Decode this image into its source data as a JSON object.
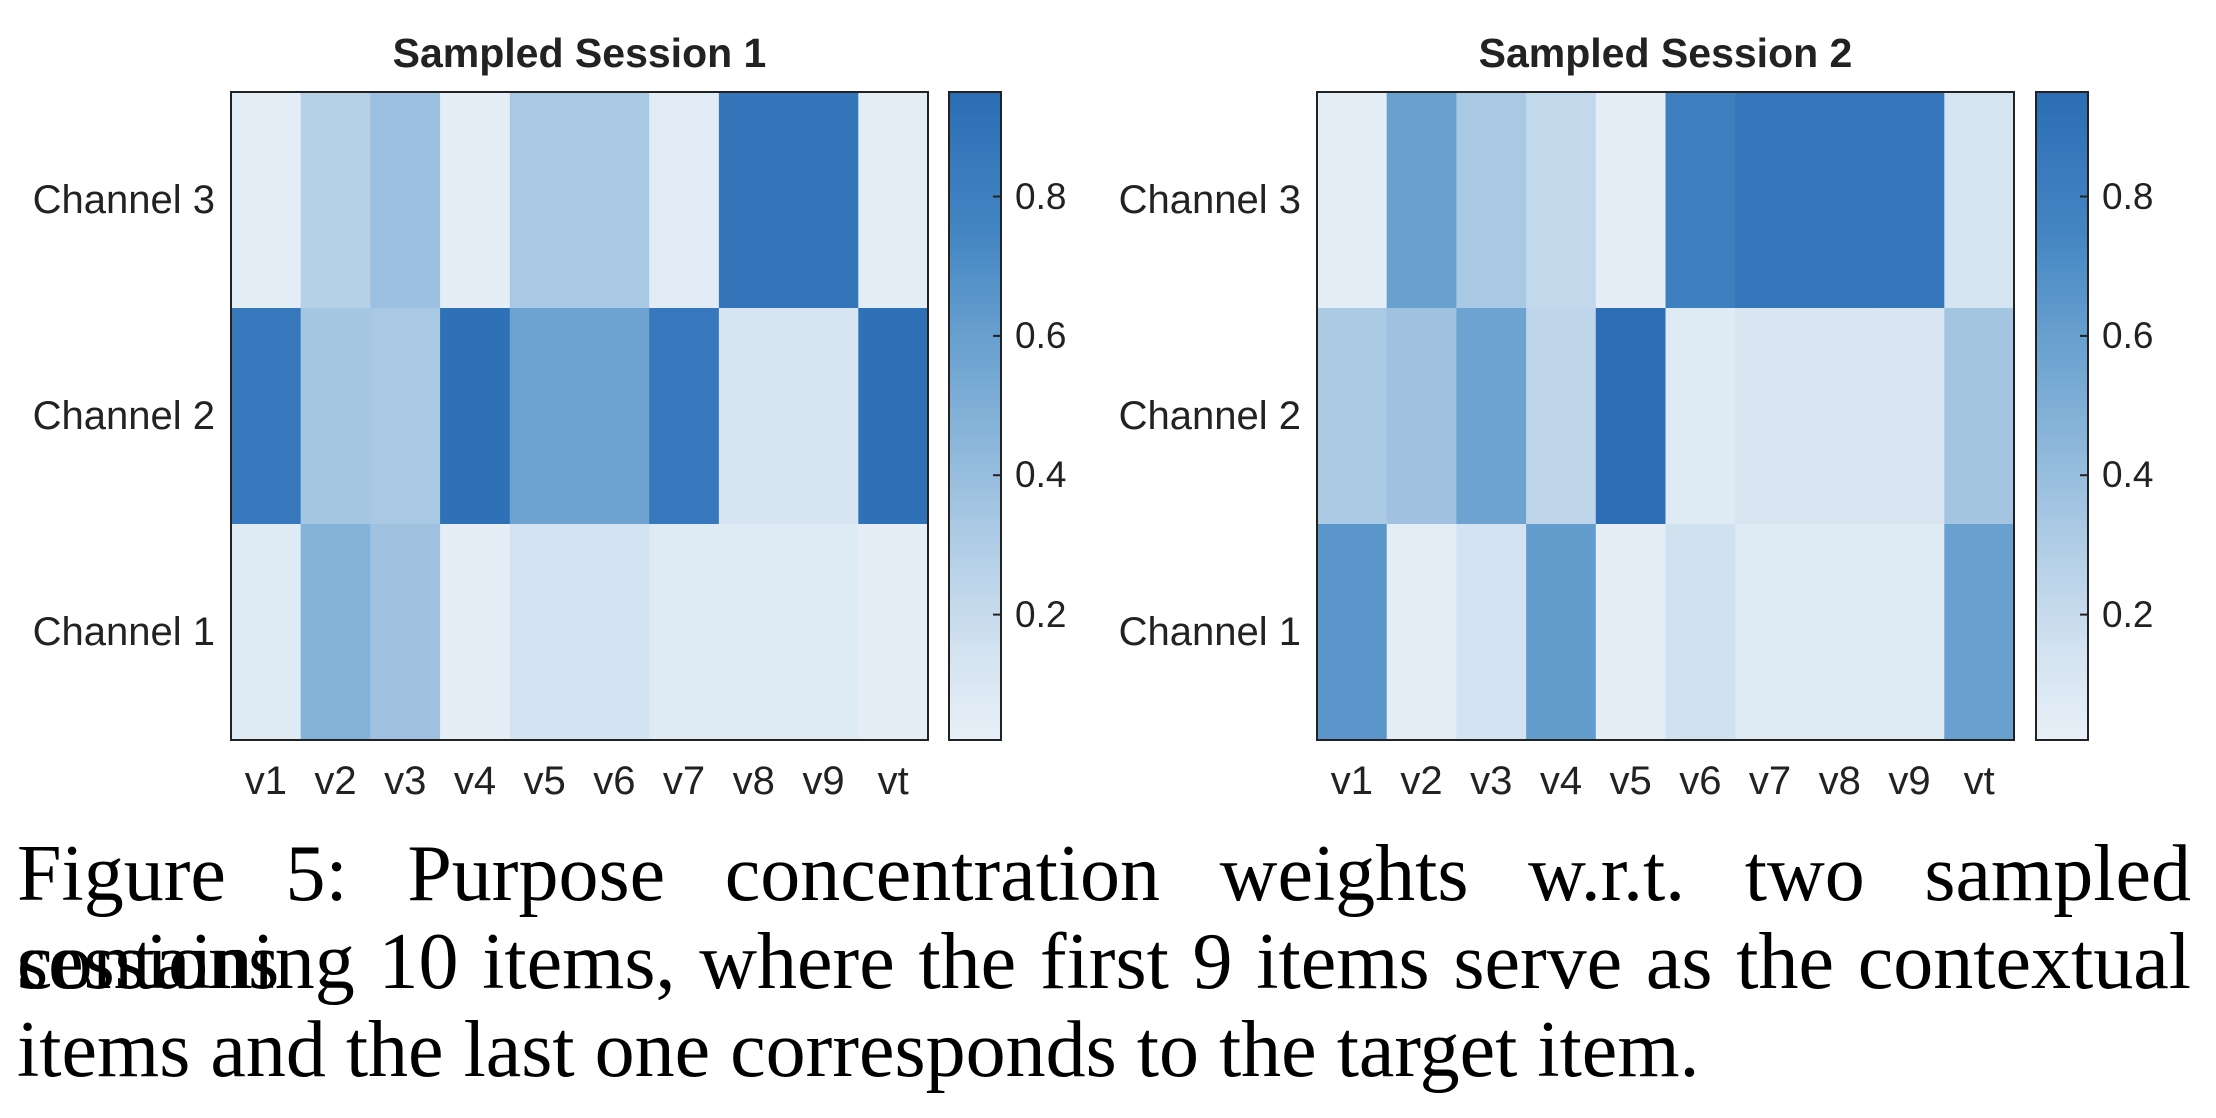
{
  "chart_data": [
    {
      "type": "heatmap",
      "title": "Sampled Session 1",
      "x_categories": [
        "v1",
        "v2",
        "v3",
        "v4",
        "v5",
        "v6",
        "v7",
        "v8",
        "v9",
        "vt"
      ],
      "y_categories": [
        "Channel 3",
        "Channel 2",
        "Channel 1"
      ],
      "values": [
        [
          0.05,
          0.28,
          0.38,
          0.04,
          0.33,
          0.33,
          0.06,
          0.88,
          0.88,
          0.05
        ],
        [
          0.86,
          0.34,
          0.33,
          0.92,
          0.58,
          0.58,
          0.86,
          0.12,
          0.12,
          0.92
        ],
        [
          0.08,
          0.48,
          0.37,
          0.04,
          0.14,
          0.14,
          0.08,
          0.08,
          0.08,
          0.04
        ]
      ],
      "colorbar": {
        "range": [
          0.02,
          0.95
        ],
        "ticks": [
          0.2,
          0.4,
          0.6,
          0.8
        ],
        "tick_labels": [
          "0.2",
          "0.4",
          "0.6",
          "0.8"
        ]
      },
      "colormap": {
        "low": "#e8f0f8",
        "high": "#2b6db4"
      }
    },
    {
      "type": "heatmap",
      "title": "Sampled Session 2",
      "x_categories": [
        "v1",
        "v2",
        "v3",
        "v4",
        "v5",
        "v6",
        "v7",
        "v8",
        "v9",
        "vt"
      ],
      "y_categories": [
        "Channel 3",
        "Channel 2",
        "Channel 1"
      ],
      "values": [
        [
          0.05,
          0.6,
          0.33,
          0.22,
          0.04,
          0.8,
          0.87,
          0.87,
          0.87,
          0.13
        ],
        [
          0.32,
          0.37,
          0.58,
          0.24,
          0.93,
          0.08,
          0.11,
          0.11,
          0.11,
          0.35
        ],
        [
          0.66,
          0.05,
          0.14,
          0.62,
          0.04,
          0.16,
          0.08,
          0.08,
          0.08,
          0.6
        ]
      ],
      "colorbar": {
        "range": [
          0.02,
          0.95
        ],
        "ticks": [
          0.2,
          0.4,
          0.6,
          0.8
        ],
        "tick_labels": [
          "0.2",
          "0.4",
          "0.6",
          "0.8"
        ]
      },
      "colormap": {
        "low": "#e8f0f8",
        "high": "#2b6db4"
      }
    }
  ],
  "caption": {
    "lines": [
      "Figure 5: Purpose concentration weights w.r.t. two sampled sessions",
      "containing 10 items, where the first 9 items serve as the contextual",
      "items and the last one corresponds to the target item."
    ]
  },
  "colors": {
    "text": "#222222",
    "frame": "#222222",
    "caption": "#000000"
  }
}
